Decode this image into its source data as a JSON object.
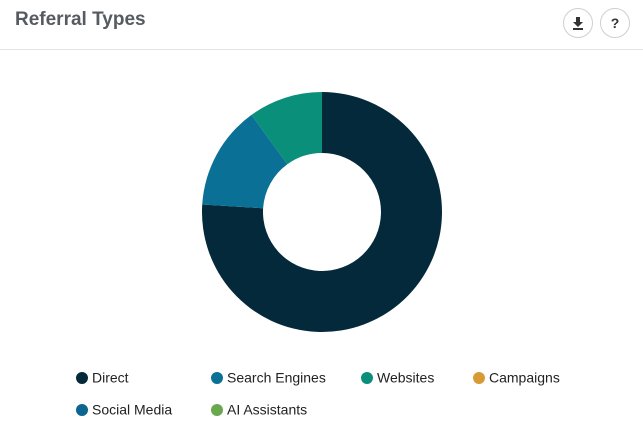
{
  "header": {
    "help": "?"
  },
  "chart_data": {
    "type": "donut",
    "title": "Referral Types",
    "categories": [
      "Direct",
      "Search Engines",
      "Websites",
      "Campaigns",
      "Social Media",
      "AI Assistants"
    ],
    "values": [
      76,
      14,
      10,
      0,
      0,
      0
    ],
    "colors": [
      "#04293a",
      "#0a7096",
      "#0a8f7a",
      "#d79a34",
      "#0a6590",
      "#6aa84f"
    ]
  }
}
